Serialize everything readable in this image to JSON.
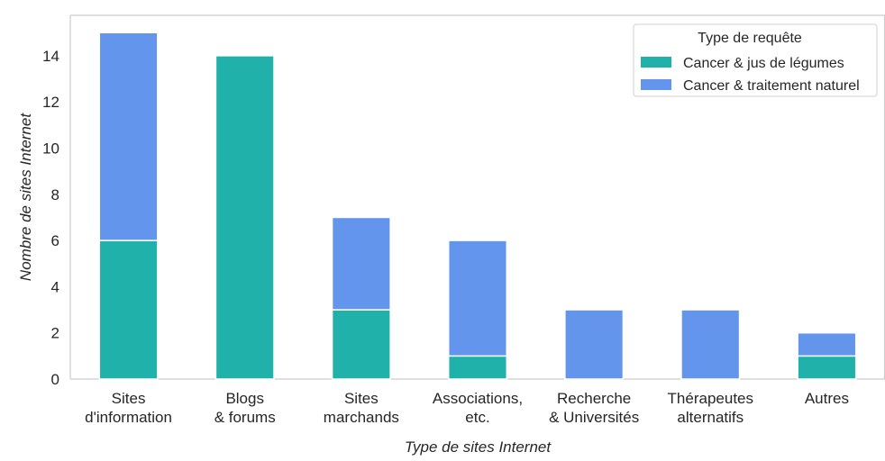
{
  "chart_data": {
    "type": "bar",
    "stacked": true,
    "categories": [
      [
        "Sites",
        "d'information"
      ],
      [
        "Blogs",
        "& forums"
      ],
      [
        "Sites",
        "marchands"
      ],
      [
        "Associations,",
        "etc."
      ],
      [
        "Recherche",
        "& Universités"
      ],
      [
        "Thérapeutes",
        "alternatifs"
      ],
      [
        "Autres"
      ]
    ],
    "series": [
      {
        "name": "Cancer & jus de légumes",
        "color": "#20b2aa",
        "values": [
          6,
          14,
          3,
          1,
          0,
          0,
          1
        ]
      },
      {
        "name": "Cancer & traitement naturel",
        "color": "#6495ed",
        "values": [
          9,
          0,
          4,
          5,
          3,
          3,
          1
        ]
      }
    ],
    "title": "",
    "xlabel": "Type de sites Internet",
    "ylabel": "Nombre de sites Internet",
    "ylim": [
      0,
      15.75
    ],
    "yticks": [
      0,
      2,
      4,
      6,
      8,
      10,
      12,
      14
    ],
    "grid": false,
    "legend": {
      "title": "Type de requête",
      "position": "top-right"
    }
  }
}
